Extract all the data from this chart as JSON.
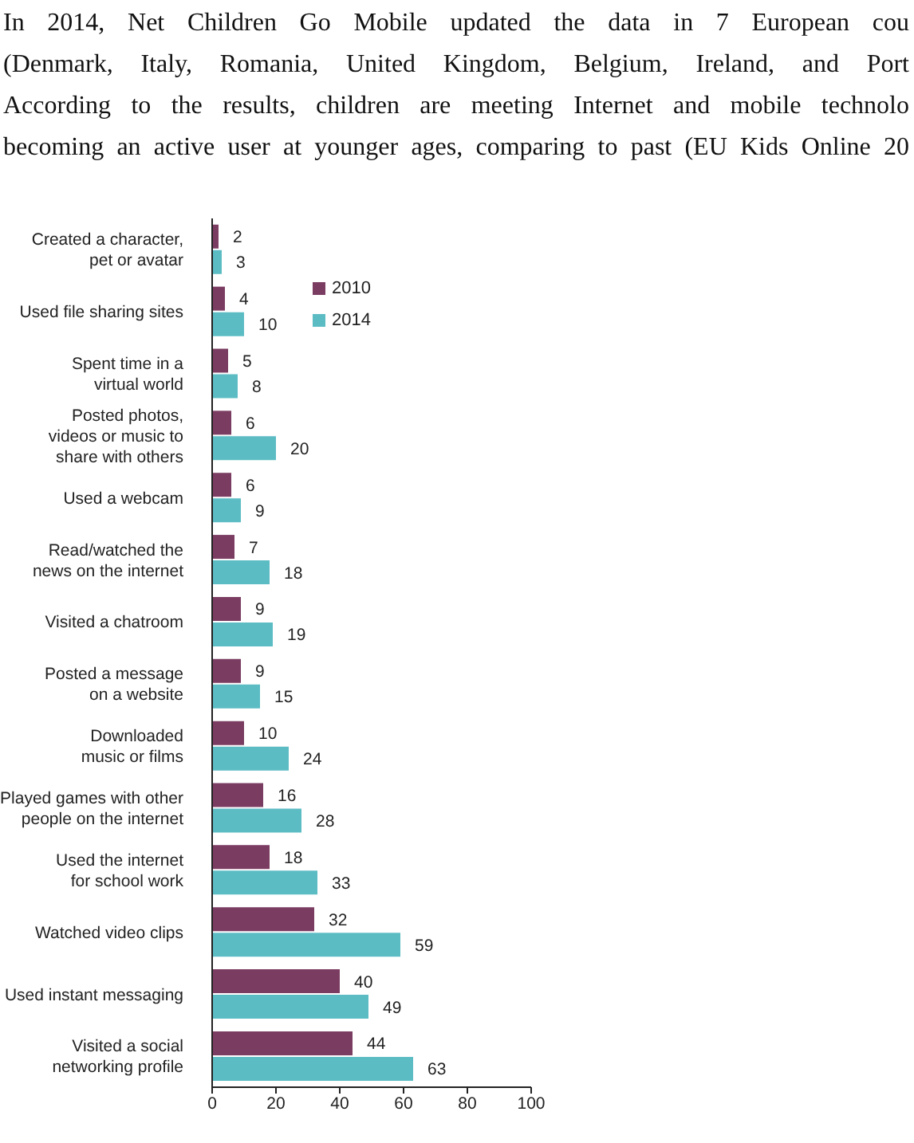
{
  "chart_data": {
    "type": "bar",
    "orientation": "horizontal",
    "annotations": [
      "In 2014, Net Children Go Mobile updated the data in 7 European cou",
      "(Denmark, Italy, Romania, United Kingdom, Belgium, Ireland, and Port",
      "According to the results, children are meeting Internet and mobile technolo",
      "becoming an active user at younger ages, comparing to past (EU Kids Online 20"
    ],
    "categories": [
      "Created a character, pet or avatar",
      "Used file sharing sites",
      "Spent time in a virtual world",
      "Posted photos, videos or music to share with others",
      "Used a webcam",
      "Read/watched the news on the internet",
      "Visited a chatroom",
      "Posted a message on a website",
      "Downloaded music or films",
      "Played games with other people on the internet",
      "Used the internet for school work",
      "Watched video clips",
      "Used instant messaging",
      "Visited a social networking profile"
    ],
    "series": [
      {
        "name": "2010",
        "color": "#7b3c61",
        "values": [
          2,
          4,
          5,
          6,
          6,
          7,
          9,
          9,
          10,
          16,
          18,
          32,
          40,
          44
        ]
      },
      {
        "name": "2014",
        "color": "#5cbcc4",
        "values": [
          3,
          10,
          8,
          20,
          9,
          18,
          19,
          15,
          24,
          28,
          33,
          59,
          49,
          63
        ]
      }
    ],
    "xlim": [
      0,
      100
    ],
    "xticks": [
      0,
      20,
      40,
      60,
      80,
      100
    ],
    "data_labels": true,
    "legend": "top left"
  }
}
